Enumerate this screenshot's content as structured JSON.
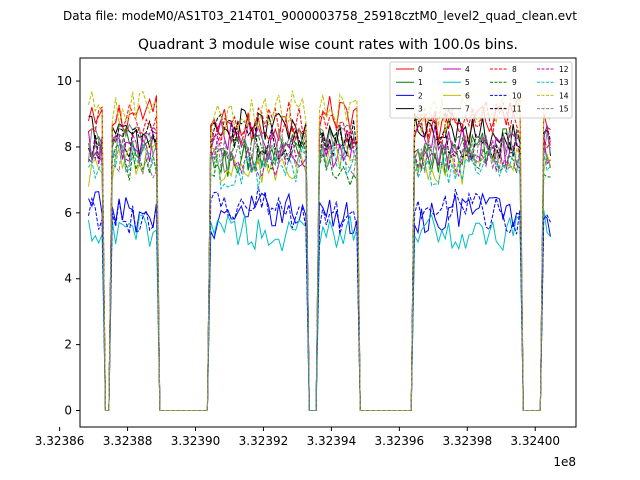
{
  "figure": {
    "suptitle": "Data file: modeM0/AS1T03_214T01_9000003758_25918cztM0_level2_quad_clean.evt"
  },
  "chart_data": {
    "type": "line",
    "title": "Quadrant 3 module wise count rates with 100.0s bins.",
    "xlabel": "",
    "ylabel": "",
    "x_offset_label": "1e8",
    "xlim": [
      332386600,
      332401200
    ],
    "ylim": [
      -0.5,
      10.7
    ],
    "xticks": [
      332386000,
      332388000,
      332390000,
      332392000,
      332394000,
      332396000,
      332398000,
      332400000
    ],
    "xtick_labels": [
      "3.32386",
      "3.32388",
      "3.32390",
      "3.32392",
      "3.32394",
      "3.32396",
      "3.32398",
      "3.32400"
    ],
    "yticks": [
      0,
      2,
      4,
      6,
      8,
      10
    ],
    "ytick_labels": [
      "0",
      "2",
      "4",
      "6",
      "8",
      "10"
    ],
    "grid": false,
    "legend_position": "top-right",
    "legend_columns": 4,
    "bin_seconds": 100,
    "x_start": 332386850,
    "on_segments": [
      [
        332386850,
        332387250
      ],
      [
        332387550,
        332388850
      ],
      [
        332390450,
        332393250
      ],
      [
        332393650,
        332394750
      ],
      [
        332396450,
        332399550
      ],
      [
        332400250,
        332400450
      ]
    ],
    "series": [
      {
        "name": "0",
        "color": "#ff0000",
        "dash": "solid",
        "level": 8.8
      },
      {
        "name": "1",
        "color": "#008000",
        "dash": "solid",
        "level": 7.8
      },
      {
        "name": "2",
        "color": "#0000ff",
        "dash": "solid",
        "level": 5.9
      },
      {
        "name": "3",
        "color": "#000000",
        "dash": "solid",
        "level": 8.4
      },
      {
        "name": "4",
        "color": "#bf00bf",
        "dash": "solid",
        "level": 8.1
      },
      {
        "name": "5",
        "color": "#00bfbf",
        "dash": "solid",
        "level": 5.5
      },
      {
        "name": "6",
        "color": "#bfbf00",
        "dash": "solid",
        "level": 7.5
      },
      {
        "name": "7",
        "color": "#808080",
        "dash": "solid",
        "level": 8.0
      },
      {
        "name": "8",
        "color": "#ff0000",
        "dash": "dashed",
        "level": 8.6
      },
      {
        "name": "9",
        "color": "#008000",
        "dash": "dashed",
        "level": 7.6
      },
      {
        "name": "10",
        "color": "#0000ff",
        "dash": "dashed",
        "level": 6.1
      },
      {
        "name": "11",
        "color": "#000000",
        "dash": "dashed",
        "level": 8.3
      },
      {
        "name": "12",
        "color": "#bf00bf",
        "dash": "dashed",
        "level": 7.9
      },
      {
        "name": "13",
        "color": "#00bfbf",
        "dash": "dashed",
        "level": 7.4
      },
      {
        "name": "14",
        "color": "#bfbf00",
        "dash": "dashed",
        "level": 9.0
      },
      {
        "name": "15",
        "color": "#808080",
        "dash": "dashed",
        "level": 7.7
      }
    ]
  }
}
